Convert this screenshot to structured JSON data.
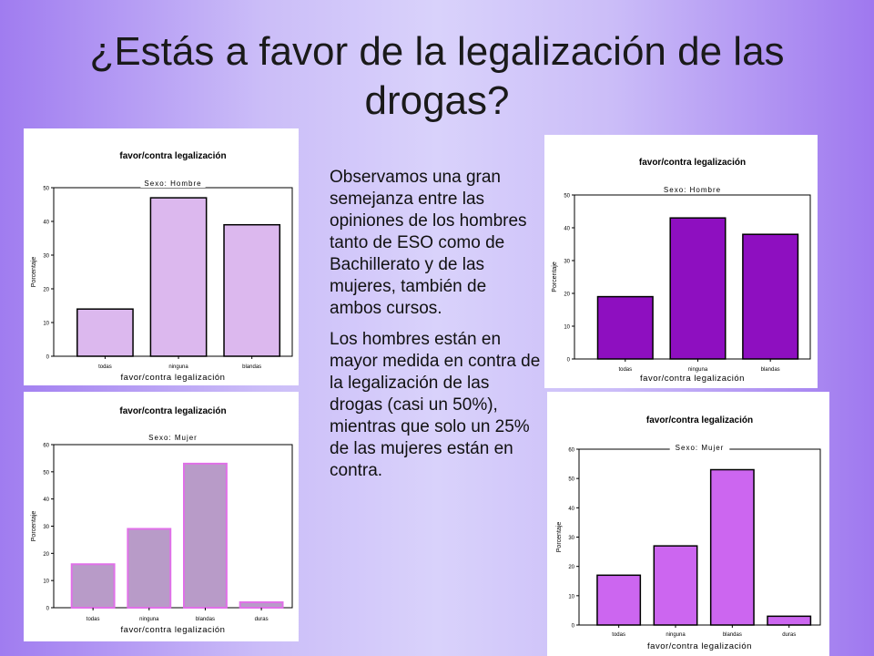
{
  "slide": {
    "title": "¿Estás a favor de la legalización de las drogas?",
    "paragraphs": [
      "Observamos una gran semejanza entre las opiniones de los hombres tanto de ESO como de Bachillerato y de las mujeres, también de ambos cursos.",
      "Los hombres están en mayor medida en contra de la legalización de las drogas (casi un 50%), mientras que solo un 25% de las mujeres están en contra."
    ]
  },
  "chart_data": [
    {
      "type": "bar",
      "title": "favor/contra legalización",
      "subtitle": "Sexo: Hombre",
      "xlabel": "favor/contra legalización",
      "ylabel": "Porcentaje",
      "categories": [
        "todas",
        "ninguna",
        "blandas"
      ],
      "values": [
        14,
        47,
        39
      ],
      "ylim": [
        0,
        50
      ],
      "yticks": [
        0,
        10,
        20,
        30,
        40,
        50
      ],
      "bar_color": "#dcb8ee",
      "grid": false
    },
    {
      "type": "bar",
      "title": "favor/contra legalización",
      "subtitle": "Sexo: Mujer",
      "xlabel": "favor/contra legalización",
      "ylabel": "Porcentaje",
      "categories": [
        "todas",
        "ninguna",
        "blandas",
        "duras"
      ],
      "values": [
        16,
        29,
        53,
        2
      ],
      "ylim": [
        0,
        60
      ],
      "yticks": [
        0,
        10,
        20,
        30,
        40,
        50,
        60
      ],
      "bar_color": "#b89bc8",
      "bar_stroke": "#e070e8",
      "grid": false
    },
    {
      "type": "bar",
      "title": "favor/contra legalización",
      "subtitle": "Sexo: Hombre",
      "xlabel": "favor/contra legalización",
      "ylabel": "Porcentaje",
      "categories": [
        "todas",
        "ninguna",
        "blandas"
      ],
      "values": [
        19,
        43,
        38
      ],
      "ylim": [
        0,
        50
      ],
      "yticks": [
        0,
        10,
        20,
        30,
        40,
        50
      ],
      "bar_color": "#8e0fc0",
      "grid": false
    },
    {
      "type": "bar",
      "title": "favor/contra legalización",
      "subtitle": "Sexo: Mujer",
      "xlabel": "favor/contra legalización",
      "ylabel": "Porcentaje",
      "categories": [
        "todas",
        "ninguna",
        "blandas",
        "duras"
      ],
      "values": [
        17,
        27,
        53,
        3
      ],
      "ylim": [
        0,
        60
      ],
      "yticks": [
        0,
        10,
        20,
        30,
        40,
        50,
        60
      ],
      "bar_color": "#cc66f0",
      "grid": false
    }
  ]
}
